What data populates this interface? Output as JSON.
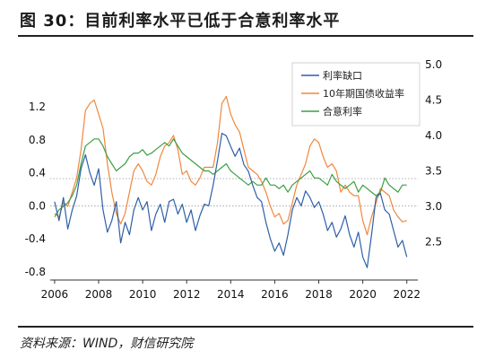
{
  "header": {
    "title": "图 30：目前利率水平已低于合意利率水平"
  },
  "footer": {
    "source": "资料来源：WIND，财信研究院"
  },
  "chart_data": {
    "type": "line",
    "title": "图 30：目前利率水平已低于合意利率水平",
    "xlabel": "",
    "ylabel_left": "",
    "ylabel_right": "",
    "xlim": [
      2005.8,
      2022.5
    ],
    "x_ticks": [
      "2006",
      "2008",
      "2010",
      "2012",
      "2014",
      "2016",
      "2018",
      "2020",
      "2022"
    ],
    "left_axis": {
      "ylim": [
        -0.9,
        1.8
      ],
      "ticks": [
        "-0.8",
        "-0.4",
        "0.0",
        "0.4",
        "0.8",
        "1.2"
      ]
    },
    "right_axis": {
      "ylim": [
        1.96,
        5.1
      ],
      "ticks": [
        "2.5",
        "3.0",
        "3.5",
        "4.0",
        "4.5",
        "5.0"
      ]
    },
    "reference_lines": [
      {
        "axis": "left",
        "y": 0.0,
        "style": "dotted"
      },
      {
        "axis": "left",
        "y": 0.33,
        "style": "dotted"
      }
    ],
    "legend": {
      "position": "top-right"
    },
    "series": [
      {
        "name": "利率缺口",
        "axis": "left",
        "color": "#2e5fa8",
        "x": [
          2006.0,
          2006.2,
          2006.4,
          2006.6,
          2006.8,
          2007.0,
          2007.2,
          2007.4,
          2007.6,
          2007.8,
          2008.0,
          2008.2,
          2008.4,
          2008.6,
          2008.8,
          2009.0,
          2009.2,
          2009.4,
          2009.6,
          2009.8,
          2010.0,
          2010.2,
          2010.4,
          2010.6,
          2010.8,
          2011.0,
          2011.2,
          2011.4,
          2011.6,
          2011.8,
          2012.0,
          2012.2,
          2012.4,
          2012.6,
          2012.8,
          2013.0,
          2013.2,
          2013.4,
          2013.6,
          2013.8,
          2014.0,
          2014.2,
          2014.4,
          2014.6,
          2014.8,
          2015.0,
          2015.2,
          2015.4,
          2015.6,
          2015.8,
          2016.0,
          2016.2,
          2016.4,
          2016.6,
          2016.8,
          2017.0,
          2017.2,
          2017.4,
          2017.6,
          2017.8,
          2018.0,
          2018.2,
          2018.4,
          2018.6,
          2018.8,
          2019.0,
          2019.2,
          2019.4,
          2019.6,
          2019.8,
          2020.0,
          2020.2,
          2020.4,
          2020.6,
          2020.8,
          2021.0,
          2021.2,
          2021.4,
          2021.6,
          2021.8,
          2022.0
        ],
        "values": [
          0.05,
          -0.18,
          0.1,
          -0.28,
          -0.05,
          0.12,
          0.45,
          0.62,
          0.4,
          0.25,
          0.45,
          -0.05,
          -0.32,
          -0.18,
          0.05,
          -0.45,
          -0.2,
          -0.35,
          -0.05,
          0.1,
          -0.05,
          0.05,
          -0.3,
          -0.1,
          0.02,
          -0.2,
          0.05,
          0.08,
          -0.1,
          0.02,
          -0.2,
          -0.05,
          -0.3,
          -0.12,
          0.02,
          0.0,
          0.25,
          0.55,
          0.88,
          0.85,
          0.72,
          0.6,
          0.7,
          0.5,
          0.42,
          0.25,
          0.1,
          0.05,
          -0.2,
          -0.4,
          -0.55,
          -0.45,
          -0.6,
          -0.35,
          -0.05,
          0.1,
          0.0,
          0.18,
          0.1,
          -0.02,
          0.05,
          -0.1,
          -0.3,
          -0.2,
          -0.38,
          -0.28,
          -0.12,
          -0.35,
          -0.5,
          -0.32,
          -0.62,
          -0.75,
          -0.35,
          0.1,
          0.15,
          -0.05,
          -0.1,
          -0.3,
          -0.5,
          -0.42,
          -0.62
        ]
      },
      {
        "name": "10年期国债收益率",
        "axis": "right",
        "color": "#f0883e",
        "x": [
          2006.0,
          2006.2,
          2006.4,
          2006.6,
          2006.8,
          2007.0,
          2007.2,
          2007.4,
          2007.6,
          2007.8,
          2008.0,
          2008.2,
          2008.4,
          2008.6,
          2008.8,
          2009.0,
          2009.2,
          2009.4,
          2009.6,
          2009.8,
          2010.0,
          2010.2,
          2010.4,
          2010.6,
          2010.8,
          2011.0,
          2011.2,
          2011.4,
          2011.6,
          2011.8,
          2012.0,
          2012.2,
          2012.4,
          2012.6,
          2012.8,
          2013.0,
          2013.2,
          2013.4,
          2013.6,
          2013.8,
          2014.0,
          2014.2,
          2014.4,
          2014.6,
          2014.8,
          2015.0,
          2015.2,
          2015.4,
          2015.6,
          2015.8,
          2016.0,
          2016.2,
          2016.4,
          2016.6,
          2016.8,
          2017.0,
          2017.2,
          2017.4,
          2017.6,
          2017.8,
          2018.0,
          2018.2,
          2018.4,
          2018.6,
          2018.8,
          2019.0,
          2019.2,
          2019.4,
          2019.6,
          2019.8,
          2020.0,
          2020.2,
          2020.4,
          2020.6,
          2020.8,
          2021.0,
          2021.2,
          2021.4,
          2021.6,
          2021.8,
          2022.0
        ],
        "values": [
          2.9,
          2.85,
          3.05,
          3.0,
          3.2,
          3.4,
          3.8,
          4.35,
          4.45,
          4.5,
          4.3,
          4.1,
          3.6,
          3.2,
          2.9,
          2.75,
          2.9,
          3.2,
          3.5,
          3.6,
          3.5,
          3.35,
          3.3,
          3.45,
          3.7,
          3.85,
          3.9,
          4.0,
          3.8,
          3.45,
          3.5,
          3.35,
          3.3,
          3.4,
          3.55,
          3.55,
          3.55,
          3.9,
          4.45,
          4.55,
          4.3,
          4.15,
          4.05,
          3.8,
          3.55,
          3.5,
          3.45,
          3.35,
          3.2,
          3.0,
          2.85,
          2.9,
          2.75,
          2.8,
          3.05,
          3.3,
          3.45,
          3.6,
          3.85,
          3.95,
          3.9,
          3.7,
          3.55,
          3.6,
          3.5,
          3.2,
          3.3,
          3.2,
          3.15,
          3.15,
          2.8,
          2.6,
          2.85,
          3.05,
          3.25,
          3.2,
          3.15,
          2.95,
          2.85,
          2.78,
          2.8
        ]
      },
      {
        "name": "合意利率",
        "axis": "right",
        "color": "#3d9f45",
        "x": [
          2006.0,
          2006.2,
          2006.4,
          2006.6,
          2006.8,
          2007.0,
          2007.2,
          2007.4,
          2007.6,
          2007.8,
          2008.0,
          2008.2,
          2008.4,
          2008.6,
          2008.8,
          2009.0,
          2009.2,
          2009.4,
          2009.6,
          2009.8,
          2010.0,
          2010.2,
          2010.4,
          2010.6,
          2010.8,
          2011.0,
          2011.2,
          2011.4,
          2011.6,
          2011.8,
          2012.0,
          2012.2,
          2012.4,
          2012.6,
          2012.8,
          2013.0,
          2013.2,
          2013.4,
          2013.6,
          2013.8,
          2014.0,
          2014.2,
          2014.4,
          2014.6,
          2014.8,
          2015.0,
          2015.2,
          2015.4,
          2015.6,
          2015.8,
          2016.0,
          2016.2,
          2016.4,
          2016.6,
          2016.8,
          2017.0,
          2017.2,
          2017.4,
          2017.6,
          2017.8,
          2018.0,
          2018.2,
          2018.4,
          2018.6,
          2018.8,
          2019.0,
          2019.2,
          2019.4,
          2019.6,
          2019.8,
          2020.0,
          2020.2,
          2020.4,
          2020.6,
          2020.8,
          2021.0,
          2021.2,
          2021.4,
          2021.6,
          2021.8,
          2022.0
        ],
        "values": [
          2.85,
          2.95,
          3.0,
          3.05,
          3.15,
          3.3,
          3.6,
          3.85,
          3.9,
          3.95,
          3.95,
          3.85,
          3.7,
          3.6,
          3.5,
          3.55,
          3.6,
          3.7,
          3.75,
          3.75,
          3.8,
          3.72,
          3.75,
          3.8,
          3.85,
          3.9,
          3.85,
          3.95,
          3.85,
          3.75,
          3.7,
          3.65,
          3.6,
          3.55,
          3.5,
          3.5,
          3.45,
          3.5,
          3.55,
          3.6,
          3.5,
          3.45,
          3.4,
          3.35,
          3.3,
          3.35,
          3.3,
          3.3,
          3.4,
          3.3,
          3.3,
          3.25,
          3.3,
          3.2,
          3.3,
          3.35,
          3.4,
          3.45,
          3.5,
          3.4,
          3.4,
          3.35,
          3.3,
          3.45,
          3.35,
          3.3,
          3.25,
          3.3,
          3.35,
          3.2,
          3.3,
          3.25,
          3.2,
          3.15,
          3.2,
          3.4,
          3.3,
          3.25,
          3.2,
          3.3,
          3.3
        ]
      }
    ]
  }
}
